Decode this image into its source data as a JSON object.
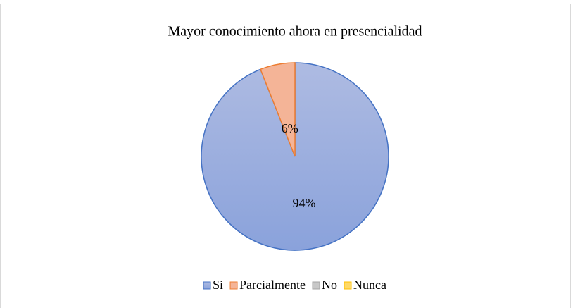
{
  "chart_data": {
    "type": "pie",
    "title": "Mayor conocimiento ahora en presencialidad",
    "categories": [
      "Si",
      "Parcialmente",
      "No",
      "Nunca"
    ],
    "values": [
      94,
      6,
      0,
      0
    ],
    "value_labels": [
      "94%",
      "6%",
      null,
      null
    ],
    "colors": [
      "#8fa6dc",
      "#f4b497",
      "#c8c8c8",
      "#ffd966"
    ],
    "stroke_colors": [
      "#4472c4",
      "#ed7d31",
      "#a5a5a5",
      "#ffc000"
    ],
    "legend": "bottom"
  }
}
